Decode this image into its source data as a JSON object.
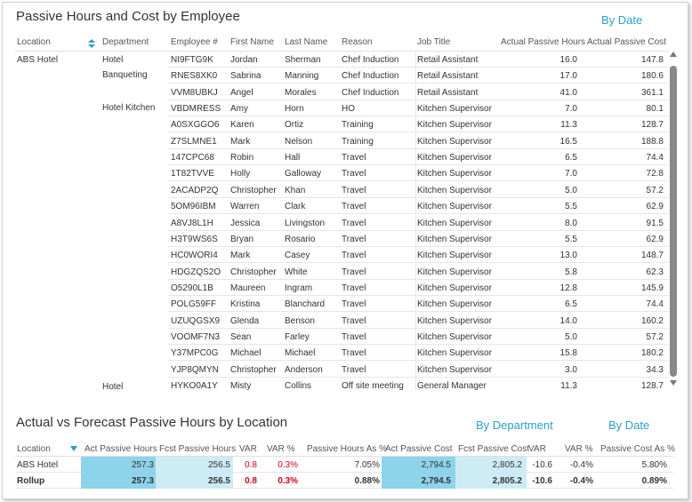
{
  "top": {
    "title": "Passive Hours and Cost by Employee",
    "by_date": "By Date",
    "columns": [
      "Location",
      "Department",
      "Employee #",
      "First Name",
      "Last Name",
      "Reason",
      "Job Title",
      "Actual Passive Hours",
      "Actual Passive Cost"
    ],
    "location": "ABS Hotel",
    "departments": [
      {
        "label": "Hotel",
        "label2": "Banqueting"
      },
      {
        "label": "Hotel Kitchen"
      },
      {
        "label": "Hotel"
      }
    ],
    "rows": [
      {
        "emp": "NI9FTG9K",
        "first": "Jordan",
        "last": "Sherman",
        "reason": "Chef Induction",
        "job": "Retail Assistant",
        "hours": "16.0",
        "cost": "147.8"
      },
      {
        "emp": "RNES8XK0",
        "first": "Sabrina",
        "last": "Manning",
        "reason": "Chef Induction",
        "job": "Retail Assistant",
        "hours": "17.0",
        "cost": "180.6"
      },
      {
        "emp": "VVM8UBKJ",
        "first": "Angel",
        "last": "Morales",
        "reason": "Chef Induction",
        "job": "Retail Assistant",
        "hours": "41.0",
        "cost": "361.1"
      },
      {
        "emp": "VBDMRESS",
        "first": "Amy",
        "last": "Horn",
        "reason": "HO",
        "job": "Kitchen Supervisor",
        "hours": "7.0",
        "cost": "80.1"
      },
      {
        "emp": "A0SXGGO6",
        "first": "Karen",
        "last": "Ortiz",
        "reason": "Training",
        "job": "Kitchen Supervisor",
        "hours": "11.3",
        "cost": "128.7"
      },
      {
        "emp": "Z7SLMNE1",
        "first": "Mark",
        "last": "Nelson",
        "reason": "Training",
        "job": "Kitchen Supervisor",
        "hours": "16.5",
        "cost": "188.8"
      },
      {
        "emp": "147CPC68",
        "first": "Robin",
        "last": "Hall",
        "reason": "Travel",
        "job": "Kitchen Supervisor",
        "hours": "6.5",
        "cost": "74.4"
      },
      {
        "emp": "1T82TVVE",
        "first": "Holly",
        "last": "Galloway",
        "reason": "Travel",
        "job": "Kitchen Supervisor",
        "hours": "7.0",
        "cost": "72.8"
      },
      {
        "emp": "2ACADP2Q",
        "first": "Christopher",
        "last": "Khan",
        "reason": "Travel",
        "job": "Kitchen Supervisor",
        "hours": "5.0",
        "cost": "57.2"
      },
      {
        "emp": "5OM96IBM",
        "first": "Warren",
        "last": "Clark",
        "reason": "Travel",
        "job": "Kitchen Supervisor",
        "hours": "5.5",
        "cost": "62.9"
      },
      {
        "emp": "A8VJ8L1H",
        "first": "Jessica",
        "last": "Livingston",
        "reason": "Travel",
        "job": "Kitchen Supervisor",
        "hours": "8.0",
        "cost": "91.5"
      },
      {
        "emp": "H3T9WS6S",
        "first": "Bryan",
        "last": "Rosario",
        "reason": "Travel",
        "job": "Kitchen Supervisor",
        "hours": "5.5",
        "cost": "62.9"
      },
      {
        "emp": "HC0WORI4",
        "first": "Mark",
        "last": "Casey",
        "reason": "Travel",
        "job": "Kitchen Supervisor",
        "hours": "13.0",
        "cost": "148.7"
      },
      {
        "emp": "HDGZQS2O",
        "first": "Christopher",
        "last": "White",
        "reason": "Travel",
        "job": "Kitchen Supervisor",
        "hours": "5.8",
        "cost": "62.3"
      },
      {
        "emp": "O5290L1B",
        "first": "Maureen",
        "last": "Ingram",
        "reason": "Travel",
        "job": "Kitchen Supervisor",
        "hours": "12.8",
        "cost": "145.9"
      },
      {
        "emp": "POLG59FF",
        "first": "Kristina",
        "last": "Blanchard",
        "reason": "Travel",
        "job": "Kitchen Supervisor",
        "hours": "6.5",
        "cost": "74.4"
      },
      {
        "emp": "UZUQGSX9",
        "first": "Glenda",
        "last": "Benson",
        "reason": "Travel",
        "job": "Kitchen Supervisor",
        "hours": "14.0",
        "cost": "160.2"
      },
      {
        "emp": "VOOMF7N3",
        "first": "Sean",
        "last": "Farley",
        "reason": "Travel",
        "job": "Kitchen Supervisor",
        "hours": "5.0",
        "cost": "57.2"
      },
      {
        "emp": "Y37MPC0G",
        "first": "Michael",
        "last": "Michael",
        "reason": "Travel",
        "job": "Kitchen Supervisor",
        "hours": "15.8",
        "cost": "180.2"
      },
      {
        "emp": "YJP8QMYN",
        "first": "Christopher",
        "last": "Anderson",
        "reason": "Travel",
        "job": "Kitchen Supervisor",
        "hours": "3.0",
        "cost": "34.3"
      },
      {
        "emp": "HYKO0A1Y",
        "first": "Misty",
        "last": "Collins",
        "reason": "Off site meeting",
        "job": "General Manager",
        "hours": "11.3",
        "cost": "128.7"
      }
    ]
  },
  "bottom": {
    "title": "Actual vs Forecast Passive Hours by Location",
    "by_department": "By Department",
    "by_date": "By Date",
    "columns": [
      "Location",
      "Act Passive Hours",
      "Fcst Passive Hours",
      "VAR",
      "VAR %",
      "Passive Hours As %",
      "Act Passive Cost",
      "Fcst Passive Cost",
      "VAR",
      "VAR %",
      "Passive Cost As %"
    ],
    "rows": [
      {
        "loc": "ABS Hotel",
        "act_h": "257.3",
        "fcst_h": "256.5",
        "var_h": "0.8",
        "varp_h": "0.3%",
        "h_as": "7.05%",
        "act_c": "2,794.5",
        "fcst_c": "2,805.2",
        "var_c": "-10.6",
        "varp_c": "-0.4%",
        "c_as": "5.80%"
      },
      {
        "loc": "Rollup",
        "act_h": "257.3",
        "fcst_h": "256.5",
        "var_h": "0.8",
        "varp_h": "0.3%",
        "h_as": "0.88%",
        "act_c": "2,794.5",
        "fcst_c": "2,805.2",
        "var_c": "-10.6",
        "varp_c": "-0.4%",
        "c_as": "0.89%"
      }
    ],
    "colors": {
      "act_fill": "#8dd3ea",
      "fcst_fill": "#cdebf5",
      "negative": "#d0021b"
    }
  }
}
